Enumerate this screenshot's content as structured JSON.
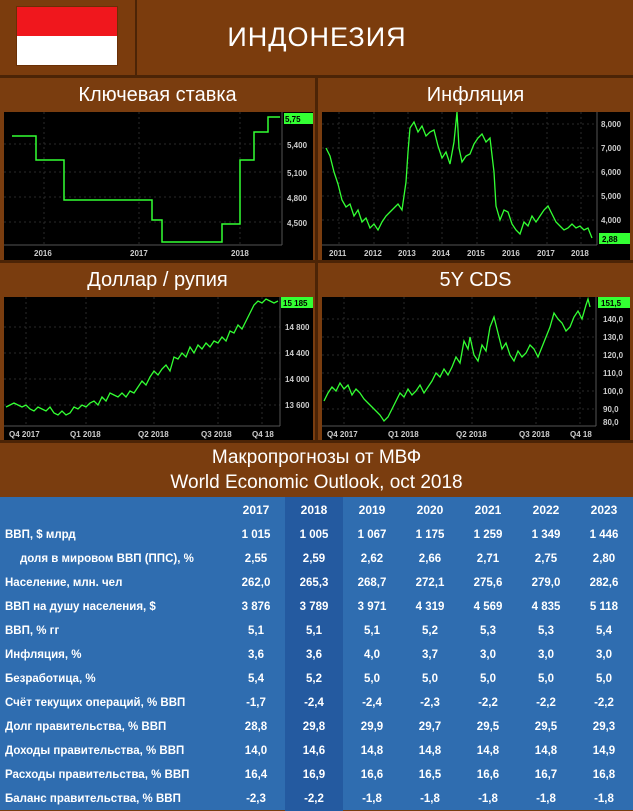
{
  "country": "ИНДОНЕЗИЯ",
  "panels": {
    "rate": {
      "title": "Ключевая ставка",
      "y_ticks": [
        "5,75",
        "5,400",
        "5,100",
        "4,800",
        "4,500"
      ],
      "x_ticks": [
        "2016",
        "2017",
        "2018"
      ],
      "last_value": "5,75",
      "color": "#33ff33"
    },
    "inflation": {
      "title": "Инфляция",
      "y_ticks": [
        "8,000",
        "7,000",
        "6,000",
        "5,000",
        "4,000"
      ],
      "x_ticks": [
        "2011",
        "2012",
        "2013",
        "2014",
        "2015",
        "2016",
        "2017",
        "2018"
      ],
      "last_value": "2,88",
      "color": "#33ff33"
    },
    "usd": {
      "title": "Доллар / рупия",
      "y_ticks": [
        "14 800",
        "14 400",
        "14 000",
        "13 600"
      ],
      "x_ticks": [
        "Q4 2017",
        "Q1 2018",
        "Q2 2018",
        "Q3 2018",
        "Q4 18"
      ],
      "last_value": "15 185",
      "color": "#33ff33"
    },
    "cds": {
      "title": "5Y CDS",
      "y_ticks": [
        "140,0",
        "130,0",
        "120,0",
        "110,0",
        "100,0",
        "90,0",
        "80,0"
      ],
      "x_ticks": [
        "Q4 2017",
        "Q1 2018",
        "Q2 2018",
        "Q3 2018",
        "Q4 18"
      ],
      "last_value": "151,5",
      "color": "#33ff33"
    }
  },
  "imf": {
    "title1": "Макропрогнозы от МВФ",
    "title2": "World Economic Outlook, oct 2018",
    "years": [
      "2017",
      "2018",
      "2019",
      "2020",
      "2021",
      "2022",
      "2023"
    ],
    "rows": [
      {
        "label": "ВВП, $ млрд",
        "indent": false,
        "values": [
          "1 015",
          "1 005",
          "1 067",
          "1 175",
          "1 259",
          "1 349",
          "1 446"
        ]
      },
      {
        "label": "доля в мировом ВВП (ППС), %",
        "indent": true,
        "values": [
          "2,55",
          "2,59",
          "2,62",
          "2,66",
          "2,71",
          "2,75",
          "2,80"
        ]
      },
      {
        "label": "Население, млн. чел",
        "indent": false,
        "values": [
          "262,0",
          "265,3",
          "268,7",
          "272,1",
          "275,6",
          "279,0",
          "282,6"
        ]
      },
      {
        "label": "ВВП на душу населения, $",
        "indent": false,
        "values": [
          "3 876",
          "3 789",
          "3 971",
          "4 319",
          "4 569",
          "4 835",
          "5 118"
        ]
      },
      {
        "label": "ВВП, % гг",
        "indent": false,
        "values": [
          "5,1",
          "5,1",
          "5,1",
          "5,2",
          "5,3",
          "5,3",
          "5,4"
        ]
      },
      {
        "label": "Инфляция, %",
        "indent": false,
        "values": [
          "3,6",
          "3,6",
          "4,0",
          "3,7",
          "3,0",
          "3,0",
          "3,0"
        ]
      },
      {
        "label": "Безработица, %",
        "indent": false,
        "values": [
          "5,4",
          "5,2",
          "5,0",
          "5,0",
          "5,0",
          "5,0",
          "5,0"
        ]
      },
      {
        "label": "Счёт текущих операций, % ВВП",
        "indent": false,
        "values": [
          "-1,7",
          "-2,4",
          "-2,4",
          "-2,3",
          "-2,2",
          "-2,2",
          "-2,2"
        ]
      },
      {
        "label": "Долг правительства, % ВВП",
        "indent": false,
        "values": [
          "28,8",
          "29,8",
          "29,9",
          "29,7",
          "29,5",
          "29,5",
          "29,3"
        ]
      },
      {
        "label": "Доходы правительства, % ВВП",
        "indent": false,
        "values": [
          "14,0",
          "14,6",
          "14,8",
          "14,8",
          "14,8",
          "14,8",
          "14,9"
        ]
      },
      {
        "label": "Расходы правительства, % ВВП",
        "indent": false,
        "values": [
          "16,4",
          "16,9",
          "16,6",
          "16,5",
          "16,6",
          "16,7",
          "16,8"
        ]
      },
      {
        "label": "Баланс правительства, % ВВП",
        "indent": false,
        "values": [
          "-2,3",
          "-2,2",
          "-1,8",
          "-1,8",
          "-1,8",
          "-1,8",
          "-1,8"
        ]
      }
    ]
  }
}
